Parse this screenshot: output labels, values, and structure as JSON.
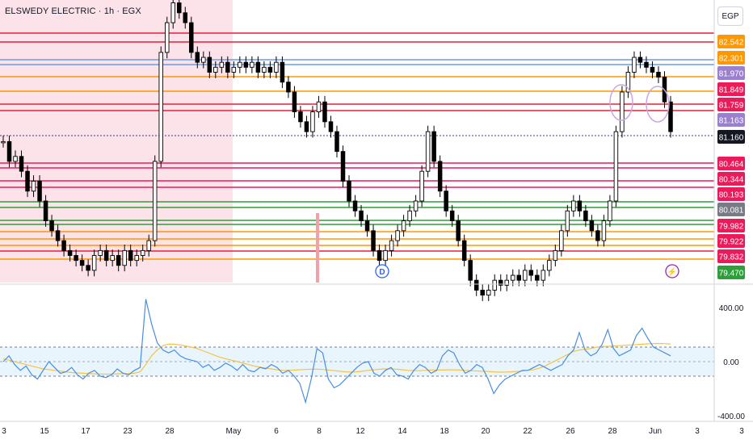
{
  "symbol": {
    "title": "ELSWEDY ELECTRIC · 1h · EGX"
  },
  "currency": "EGP",
  "colors": {
    "red": "#e91e3b",
    "orange": "#ff9800",
    "blue": "#6d9ceb",
    "green": "#2e9e3b",
    "purple": "#7e57c2",
    "pink": "#ec1a5a",
    "navy": "#3c3c8c",
    "shade": "#fbd9e3"
  },
  "price_axis": {
    "levels": [
      {
        "label": "82.542",
        "color": "#e91e3b",
        "bg": "#ff9800"
      },
      {
        "label": "82.301",
        "color": "#ff9800",
        "bg": "#ff9800"
      },
      {
        "label": "81.970",
        "color": "#6d9ceb",
        "bg": "#9c80d0"
      },
      {
        "label": "81.849",
        "color": "#ff9800",
        "bg": "#ec1a5a"
      },
      {
        "label": "81.759",
        "color": "#e91e3b",
        "bg": "#ec1a5a"
      },
      {
        "label": "81.163",
        "color": "#7e57c2",
        "bg": "#9c80d0"
      },
      {
        "label": "81.160",
        "color": "#000000",
        "bg": "#131722"
      },
      {
        "label": "80.464",
        "color": "#e91e3b",
        "bg": "#ec1a5a"
      },
      {
        "label": "80.344",
        "color": "#e91e3b",
        "bg": "#ec1a5a"
      },
      {
        "label": "80.193",
        "color": "#e91e3b",
        "bg": "#ec1a5a"
      },
      {
        "label": "80.081",
        "color": "#2e9e3b",
        "bg": "#787b86"
      },
      {
        "label": "79.982",
        "color": "#2e9e3b",
        "bg": "#ec1a5a"
      },
      {
        "label": "79.922",
        "color": "#ff9800",
        "bg": "#ec1a5a"
      },
      {
        "label": "79.832",
        "color": "#ff9800",
        "bg": "#ec1a5a"
      },
      {
        "label": "79.470",
        "color": "#2e9e3b",
        "bg": "#2e9e3b"
      }
    ]
  },
  "oscillator_axis": {
    "ticks": [
      "400.00",
      "0.00",
      "-400.00"
    ]
  },
  "time_axis": {
    "labels": [
      "3",
      "15",
      "17",
      "23",
      "28",
      "May",
      "6",
      "8",
      "12",
      "14",
      "18",
      "20",
      "22",
      "26",
      "28",
      "Jun",
      "3",
      "3"
    ]
  },
  "markers": {
    "dividend": "D",
    "event": "⚡"
  }
}
